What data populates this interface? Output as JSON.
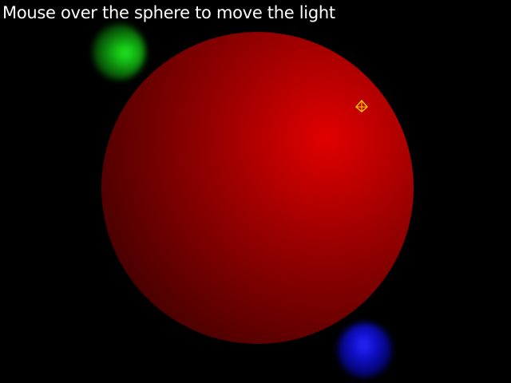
{
  "scene": {
    "instruction": "Mouse over the sphere to move the light",
    "background_color": "#000000",
    "sphere": {
      "name": "red-sphere",
      "color": "#cc0000"
    },
    "orbs": [
      {
        "name": "green-orb",
        "color": "#22ee22"
      },
      {
        "name": "blue-orb",
        "color": "#2a2aff"
      }
    ],
    "light": {
      "icon": "light-source-icon",
      "color": "#ffcc00"
    }
  }
}
